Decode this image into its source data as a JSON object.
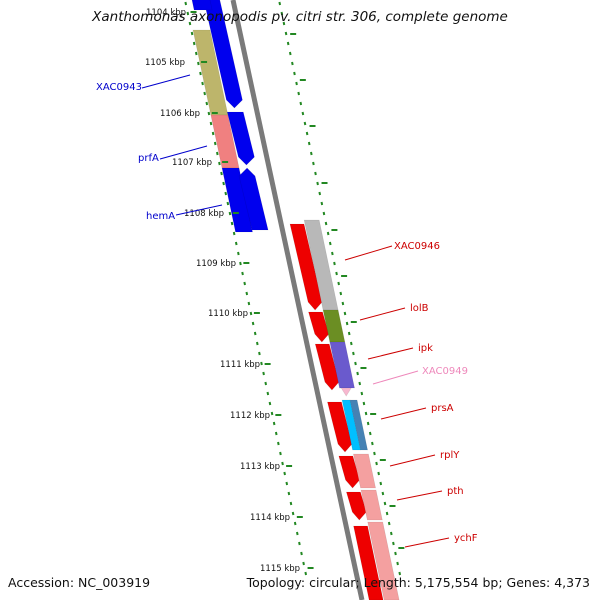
{
  "title": "Xanthomonas axonopodis pv. citri str. 306, complete genome",
  "footer": {
    "accession": "Accession: NC_003919",
    "summary": "Topology: circular; Length: 5,175,554 bp; Genes: 4,373"
  },
  "kbp_labels": [
    {
      "label": "1104 kbp",
      "faded": true
    },
    {
      "label": "1105 kbp"
    },
    {
      "label": "1106 kbp"
    },
    {
      "label": "1107 kbp"
    },
    {
      "label": "1108 kbp"
    },
    {
      "label": "1109 kbp"
    },
    {
      "label": "1110 kbp"
    },
    {
      "label": "1111 kbp"
    },
    {
      "label": "1112 kbp"
    },
    {
      "label": "1113 kbp"
    },
    {
      "label": "1114 kbp"
    },
    {
      "label": "1115 kbp"
    }
  ],
  "gene_labels_left": [
    {
      "name": "XAC0943",
      "color": "#0000cc"
    },
    {
      "name": "prfA",
      "color": "#0000cc"
    },
    {
      "name": "hemA",
      "color": "#0000cc"
    }
  ],
  "gene_labels_right": [
    {
      "name": "XAC0946",
      "color": "#cc0000"
    },
    {
      "name": "lolB",
      "color": "#cc0000"
    },
    {
      "name": "ipk",
      "color": "#cc0000"
    },
    {
      "name": "XAC0949",
      "color": "#ee88bb"
    },
    {
      "name": "prsA",
      "color": "#cc0000"
    },
    {
      "name": "rplY",
      "color": "#cc0000"
    },
    {
      "name": "pth",
      "color": "#cc0000"
    },
    {
      "name": "ychF",
      "color": "#cc0000"
    }
  ],
  "colors": {
    "backbone": "#7a7a7a",
    "tick": "#228822",
    "blue_gene": "#0000ee",
    "red_gene": "#ee0000",
    "grey_cog": "#b8b8b8",
    "olive_cog": "#bdb56b",
    "salmon_cog": "#f08080",
    "green_cog": "#6b8e23",
    "purple_cog": "#6a5acd",
    "cyan_cog": "#00bfff",
    "steel_cog": "#4682b4",
    "pink_cog": "#f4a0a0"
  }
}
